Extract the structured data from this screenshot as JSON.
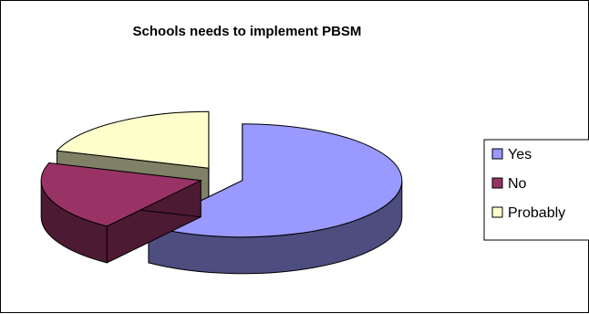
{
  "chart_data": {
    "type": "pie",
    "style": "3d-exploded",
    "title": "Schools needs to implement PBSM",
    "categories": [
      "Yes",
      "No",
      "Probably"
    ],
    "values": [
      60,
      20,
      20
    ],
    "unit": "percent",
    "colors": {
      "Yes": "#9999ff",
      "No": "#993366",
      "Probably": "#ffffcc"
    },
    "legend": {
      "position": "right",
      "entries": [
        "Yes",
        "No",
        "Probably"
      ]
    },
    "grid": false
  }
}
